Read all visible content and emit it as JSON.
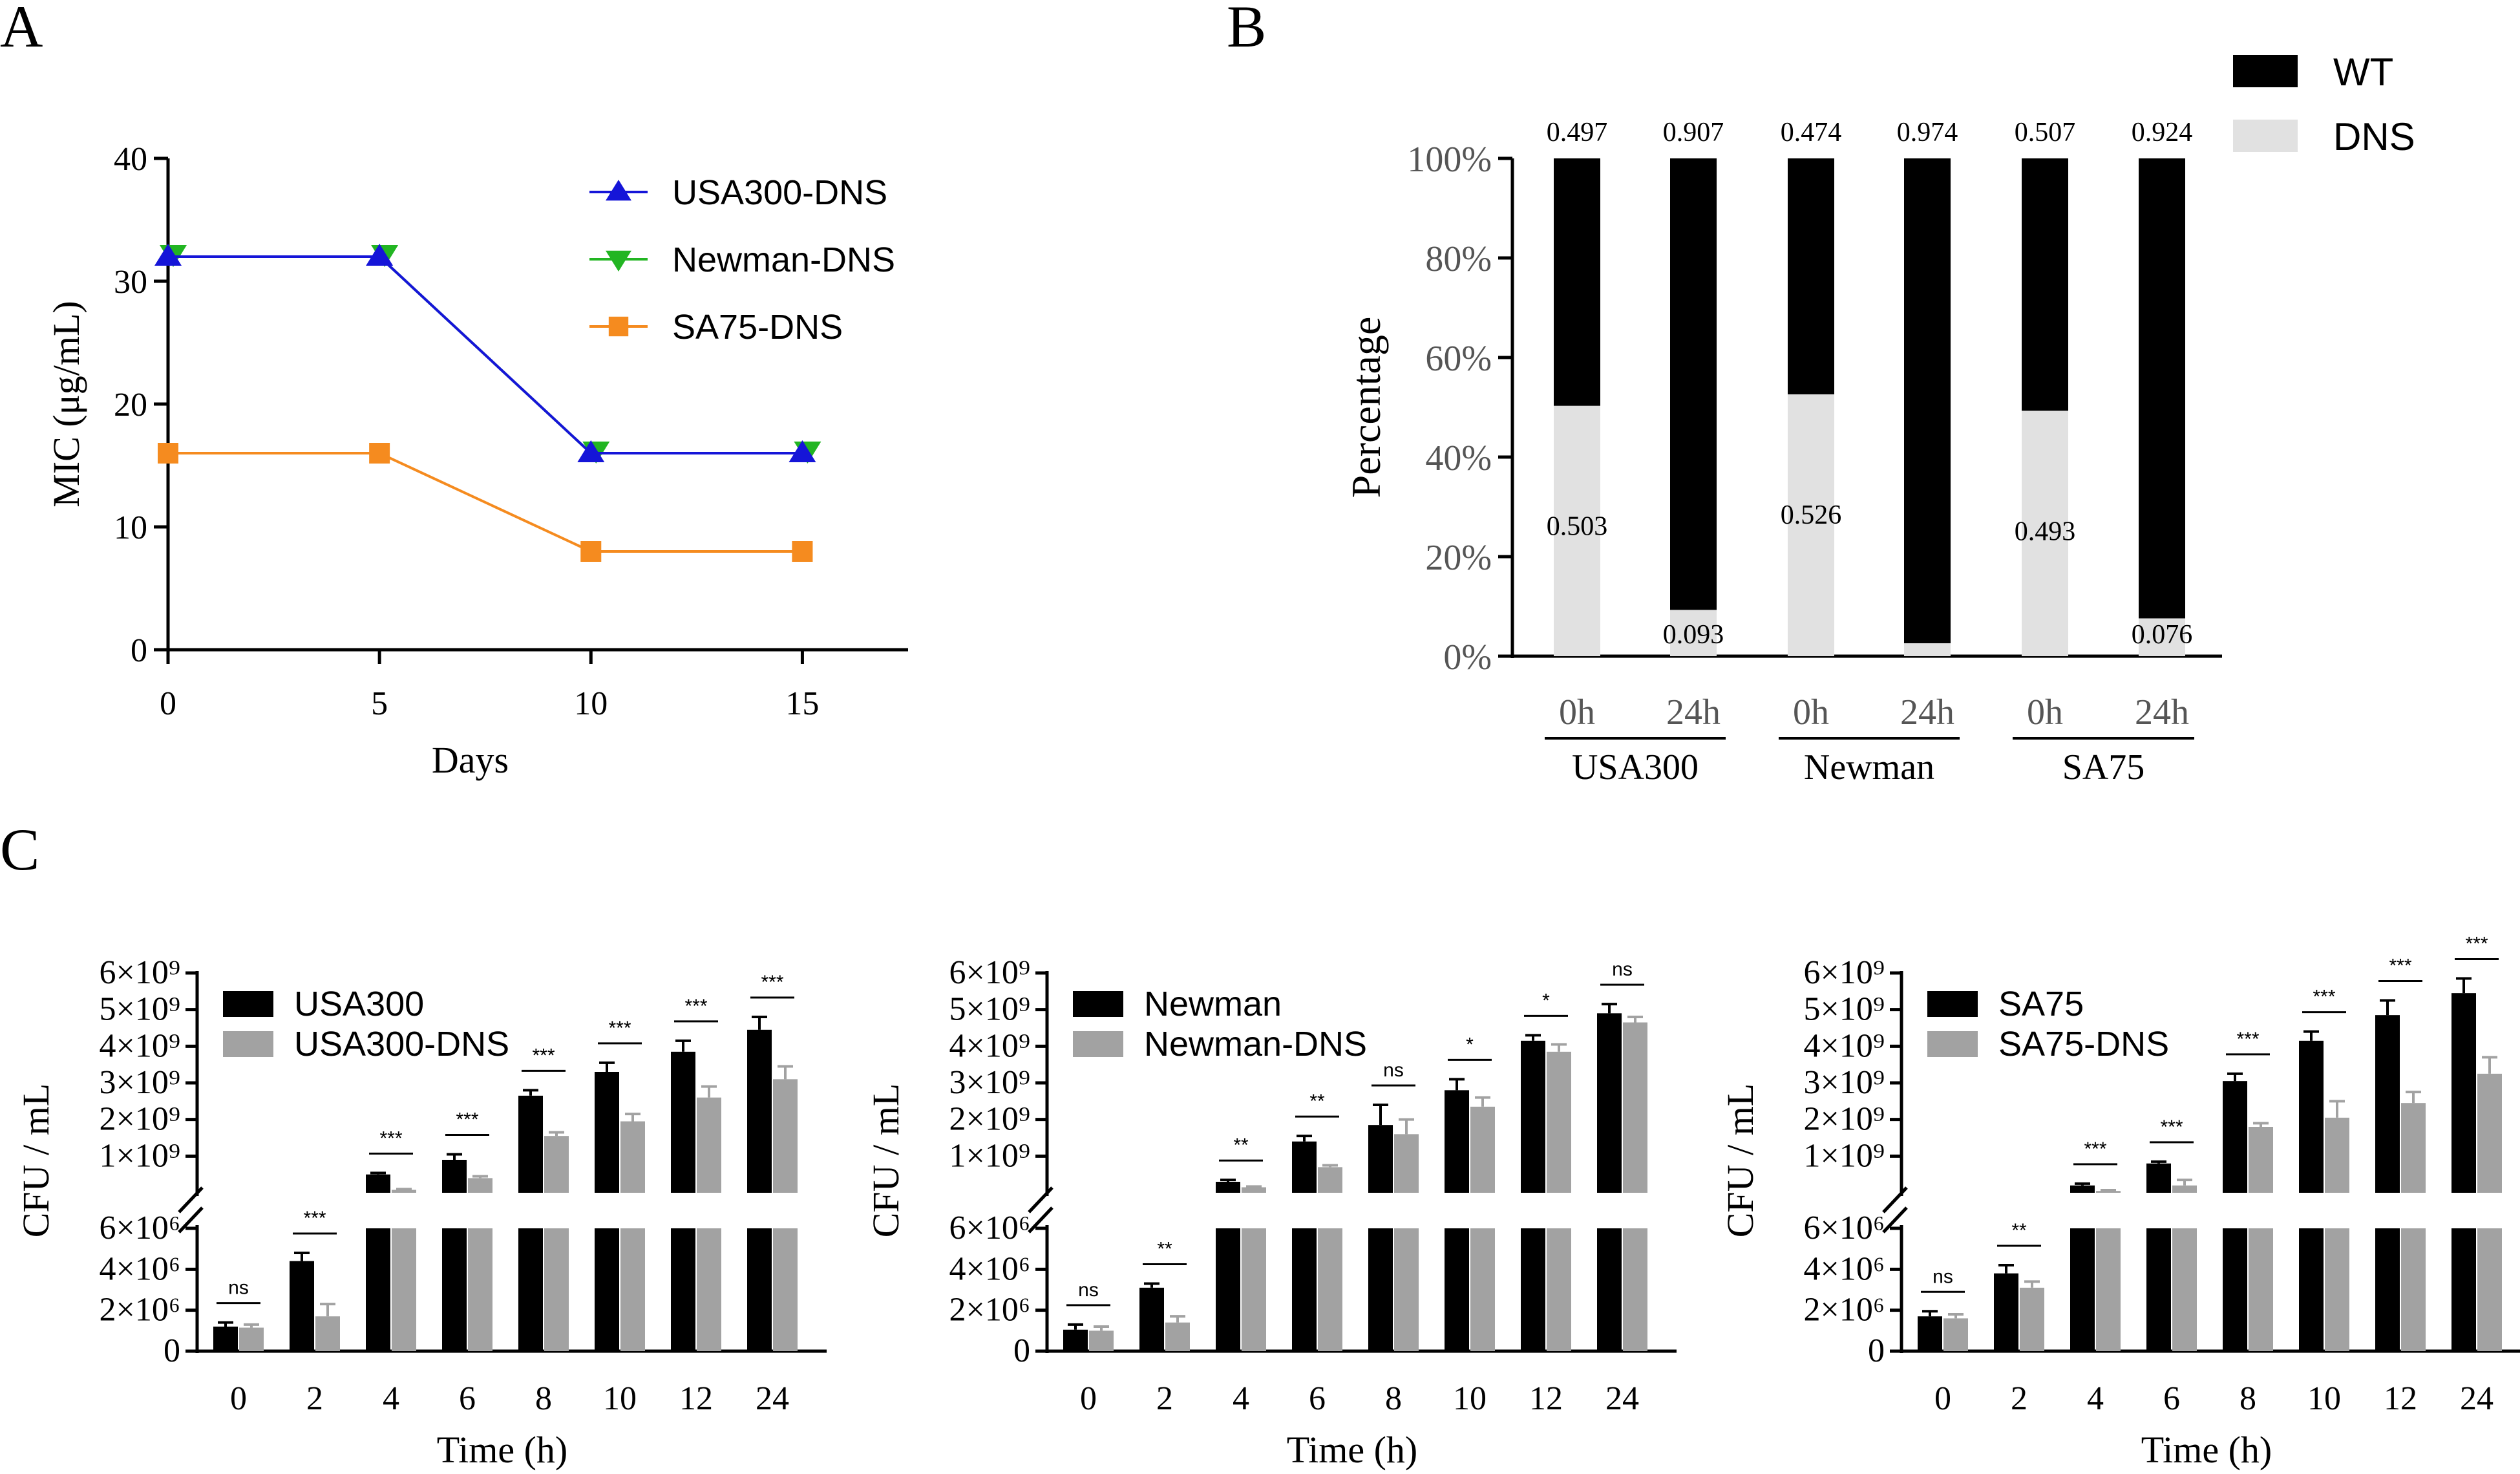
{
  "panel_labels": [
    "A",
    "B",
    "C"
  ],
  "chart_data": [
    {
      "type": "line",
      "panel": "A",
      "title": "",
      "xlabel": "Days",
      "ylabel": "MIC (μg/mL)",
      "x": [
        0,
        5,
        10,
        15
      ],
      "xticks": [
        "0",
        "5",
        "10",
        "15"
      ],
      "yticks": [
        "0",
        "10",
        "20",
        "30",
        "40"
      ],
      "xlim": [
        0,
        17.5
      ],
      "ylim": [
        0,
        40
      ],
      "legend_position": "top-right",
      "series": [
        {
          "name": "USA300-DNS",
          "values": [
            32,
            32,
            16,
            16
          ],
          "color": "#1515d8",
          "marker": "triangle-up"
        },
        {
          "name": "Newman-DNS",
          "values": [
            32,
            32,
            16,
            16
          ],
          "color": "#22b522",
          "marker": "triangle-down"
        },
        {
          "name": "SA75-DNS",
          "values": [
            16,
            16,
            8,
            8
          ],
          "color": "#f58b1f",
          "marker": "square"
        }
      ]
    },
    {
      "type": "bar",
      "panel": "B",
      "stacked": true,
      "ylabel": "Percentage",
      "ylim": [
        0,
        1
      ],
      "yticks": [
        "0%",
        "20%",
        "40%",
        "60%",
        "80%",
        "100%"
      ],
      "categories": [
        "0h",
        "24h",
        "0h",
        "24h",
        "0h",
        "24h"
      ],
      "groups": [
        "USA300",
        "Newman",
        "SA75"
      ],
      "legend_position": "top-right",
      "series": [
        {
          "name": "DNS",
          "color": "#e1e1e1",
          "values": [
            0.503,
            0.093,
            0.526,
            0.026,
            0.493,
            0.076
          ],
          "labels": [
            "0.503",
            "0.093",
            "0.526",
            "",
            "0.493",
            "0.076"
          ]
        },
        {
          "name": "WT",
          "color": "#000000",
          "values": [
            0.497,
            0.907,
            0.474,
            0.974,
            0.507,
            0.924
          ],
          "labels": [
            "0.497",
            "0.907",
            "0.474",
            "0.974",
            "0.507",
            "0.924"
          ]
        }
      ]
    },
    {
      "type": "bar",
      "panel": "C",
      "xlabel": "Time (h)",
      "ylabel": "CFU / mL",
      "categories": [
        "0",
        "2",
        "4",
        "6",
        "8",
        "10",
        "12",
        "24"
      ],
      "series": [
        {
          "name": "USA300",
          "color": "#000000",
          "values": [
            1200000,
            4400000,
            500000000,
            900000000,
            2650000000,
            3300000000,
            3850000000,
            4450000000
          ],
          "errors": [
            200000,
            400000,
            40000000,
            150000000,
            150000000,
            250000000,
            300000000,
            350000000
          ]
        },
        {
          "name": "USA300-DNS",
          "color": "#a2a2a2",
          "values": [
            1150000,
            1700000,
            80000000,
            400000000,
            1550000000,
            1950000000,
            2600000000,
            3100000000
          ],
          "errors": [
            150000,
            600000,
            20000000,
            50000000,
            100000000,
            200000000,
            300000000,
            350000000
          ]
        }
      ],
      "significance": [
        "ns",
        "***",
        "***",
        "***",
        "***",
        "***",
        "***",
        "***"
      ]
    },
    {
      "type": "bar",
      "panel": "C",
      "xlabel": "Time (h)",
      "ylabel": "CFU / mL",
      "categories": [
        "0",
        "2",
        "4",
        "6",
        "8",
        "10",
        "12",
        "24"
      ],
      "series": [
        {
          "name": "Newman",
          "color": "#000000",
          "values": [
            1050000,
            3100000,
            300000000,
            1400000000,
            1850000000,
            2800000000,
            4150000000,
            4900000000
          ],
          "errors": [
            250000,
            200000,
            50000000,
            150000000,
            550000000,
            300000000,
            150000000,
            250000000
          ]
        },
        {
          "name": "Newman-DNS",
          "color": "#a2a2a2",
          "values": [
            1000000,
            1400000,
            150000000,
            700000000,
            1600000000,
            2350000000,
            3850000000,
            4650000000
          ],
          "errors": [
            200000,
            300000,
            20000000,
            50000000,
            400000000,
            250000000,
            200000000,
            150000000
          ]
        }
      ],
      "significance": [
        "ns",
        "**",
        "**",
        "**",
        "ns",
        "*",
        "*",
        "ns"
      ]
    },
    {
      "type": "bar",
      "panel": "C",
      "xlabel": "Time (h)",
      "ylabel": "CFU / mL",
      "categories": [
        "0",
        "2",
        "4",
        "6",
        "8",
        "10",
        "12",
        "24"
      ],
      "series": [
        {
          "name": "SA75",
          "color": "#000000",
          "values": [
            1700000,
            3800000,
            200000000,
            800000000,
            3050000000,
            4150000000,
            4850000000,
            5450000000
          ],
          "errors": [
            250000,
            400000,
            50000000,
            50000000,
            200000000,
            250000000,
            400000000,
            400000000
          ]
        },
        {
          "name": "SA75-DNS",
          "color": "#a2a2a2",
          "values": [
            1600000,
            3100000,
            50000000,
            200000000,
            1800000000,
            2050000000,
            2450000000,
            3250000000
          ],
          "errors": [
            200000,
            300000,
            20000000,
            150000000,
            100000000,
            450000000,
            300000000,
            450000000
          ]
        }
      ],
      "significance": [
        "ns",
        "**",
        "***",
        "***",
        "***",
        "***",
        "***",
        "***"
      ]
    }
  ]
}
